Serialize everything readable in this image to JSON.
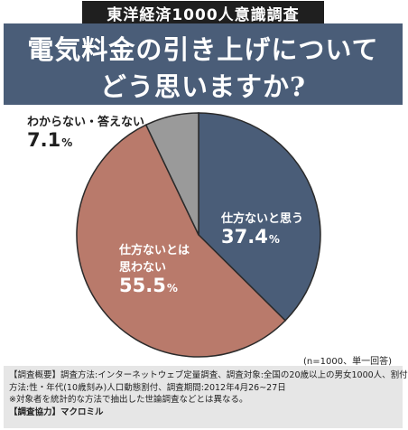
{
  "survey_label": "東洋経済1000人意識調査",
  "title": {
    "line1": "電気料金の引き上げについて",
    "line2": "どう思いますか?"
  },
  "chart_data": {
    "type": "pie",
    "title": "電気料金の引き上げについてどう思いますか?",
    "start": "12 o'clock, clockwise",
    "slices": [
      {
        "label": "仕方ないと思う",
        "value": 37.4,
        "color": "#4a5d78",
        "label_color": "#ffffff"
      },
      {
        "label": "仕方ないとは思わない",
        "value": 55.5,
        "color": "#b97a6b",
        "label_color": "#ffffff"
      },
      {
        "label": "わからない・答えない",
        "value": 7.1,
        "color": "#9a9a9a",
        "label_color": "#1f1f1f"
      }
    ],
    "unit": "%"
  },
  "sample_note": "(n=1000、単一回答)",
  "footer": {
    "line1": "【調査概要】調査方法:インターネットウェブ定量調査、調査対象:全国の20歳以上の男女1000人、割付",
    "line2": "方法:性・年代(10歳刻み)人口動態割付、調査期間:2012年4月26~27日",
    "line3": "※対象者を統計的な方法で抽出した世論調査などとは異なる。",
    "cooperation_label": "【調査協力】",
    "cooperation_value": "マクロミル"
  }
}
